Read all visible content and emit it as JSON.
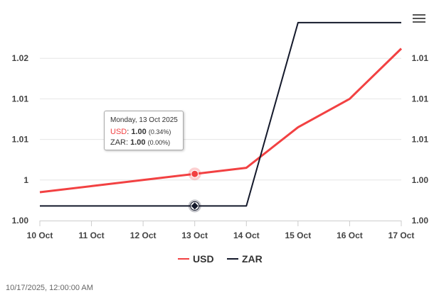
{
  "chart_data": {
    "type": "line",
    "categories": [
      "10 Oct",
      "11 Oct",
      "12 Oct",
      "13 Oct",
      "14 Oct",
      "15 Oct",
      "16 Oct",
      "17 Oct"
    ],
    "series": [
      {
        "name": "USD",
        "color": "#f24142",
        "values": [
          0.9985,
          0.99925,
          1.0,
          1.00075,
          1.0015,
          1.0065,
          1.01,
          1.0162
        ]
      },
      {
        "name": "ZAR",
        "color": "#14192b",
        "values": [
          0.9968,
          0.9968,
          0.9968,
          0.9968,
          0.9968,
          1.0194,
          1.0194,
          1.0194
        ]
      }
    ],
    "ylim": [
      0.995,
      1.02
    ],
    "yticks_left": [
      {
        "value": 0.995,
        "label": "1.00"
      },
      {
        "value": 1.0,
        "label": "1"
      },
      {
        "value": 1.005,
        "label": "1.01"
      },
      {
        "value": 1.01,
        "label": "1.01"
      },
      {
        "value": 1.015,
        "label": "1.02"
      }
    ],
    "yticks_right": [
      {
        "value": 0.995,
        "label": "1.00"
      },
      {
        "value": 1.0,
        "label": "1.00"
      },
      {
        "value": 1.005,
        "label": "1.01"
      },
      {
        "value": 1.01,
        "label": "1.01"
      },
      {
        "value": 1.015,
        "label": "1.01"
      }
    ],
    "grid": true,
    "legend": "bottom-center",
    "highlight_index": 3
  },
  "tooltip": {
    "date": "Monday, 13 Oct 2025",
    "rows": [
      {
        "name": "USD",
        "value": "1.00",
        "pct": "(0.34%)",
        "color": "#f24142"
      },
      {
        "name": "ZAR",
        "value": "1.00",
        "pct": "(0.00%)",
        "color": "#333333"
      }
    ]
  },
  "timestamp": "10/17/2025, 12:00:00 AM",
  "menu_icon": "hamburger-menu-icon"
}
